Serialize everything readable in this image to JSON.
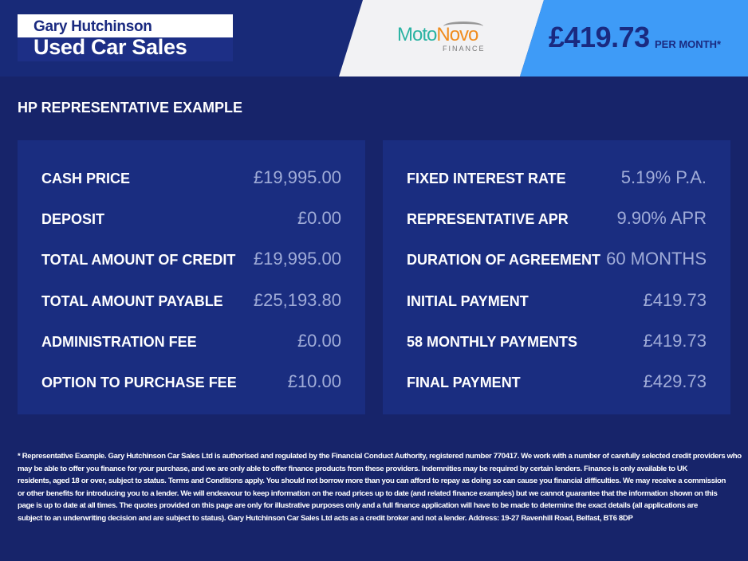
{
  "header": {
    "dealer_logo": {
      "line1": "Gary Hutchinson",
      "line2": "Used Car Sales"
    },
    "finance_logo": {
      "part1": "Moto",
      "part2": "Novo",
      "sub": "FINANCE"
    },
    "monthly_price": "£419.73",
    "per_month_label": "PER MONTH*"
  },
  "section_title": "HP REPRESENTATIVE EXAMPLE",
  "left_panel": [
    {
      "label": "CASH PRICE",
      "value": "£19,995.00"
    },
    {
      "label": "DEPOSIT",
      "value": "£0.00"
    },
    {
      "label": "TOTAL AMOUNT OF CREDIT",
      "value": "£19,995.00"
    },
    {
      "label": "TOTAL AMOUNT PAYABLE",
      "value": "£25,193.80"
    },
    {
      "label": "ADMINISTRATION FEE",
      "value": "£0.00"
    },
    {
      "label": "OPTION TO PURCHASE FEE",
      "value": "£10.00"
    }
  ],
  "right_panel": [
    {
      "label": "FIXED INTEREST RATE",
      "value": "5.19% P.A."
    },
    {
      "label": "REPRESENTATIVE APR",
      "value": "9.90% APR"
    },
    {
      "label": "DURATION OF AGREEMENT",
      "value": "60 MONTHS"
    },
    {
      "label": "INITIAL PAYMENT",
      "value": "£419.73"
    },
    {
      "label": "58 MONTHLY PAYMENTS",
      "value": "£419.73"
    },
    {
      "label": "FINAL PAYMENT",
      "value": "£429.73"
    }
  ],
  "disclaimer": [
    "* Representative Example. Gary Hutchinson Car Sales Ltd is authorised and regulated by the Financial Conduct Authority, registered number 770417. We work with a number of carefully selected credit providers who",
    "may be able to offer you finance for your purchase, and we are only able to offer finance products from these providers. Indemnities may be required by certain lenders. Finance is only available to UK",
    "residents, aged 18 or over, subject to status. Terms and Conditions apply. You should not borrow more than you can afford to repay as doing so can cause you financial difficulties. We may receive a commission",
    "or other benefits for introducing you to a lender. We will endeavour to keep information on the road prices up to date (and related finance examples) but we cannot guarantee that the information shown on this",
    "page is up to date at all times. The quotes provided on this page are only for illustrative purposes only and a full finance application will have to be made to determine the exact details (all applications are",
    "subject to an underwriting decision and are subject to status). Gary Hutchinson Car Sales Ltd acts as a credit broker and not a lender. Address: 19-27 Ravenhill Road, Belfast, BT6 8DP"
  ]
}
